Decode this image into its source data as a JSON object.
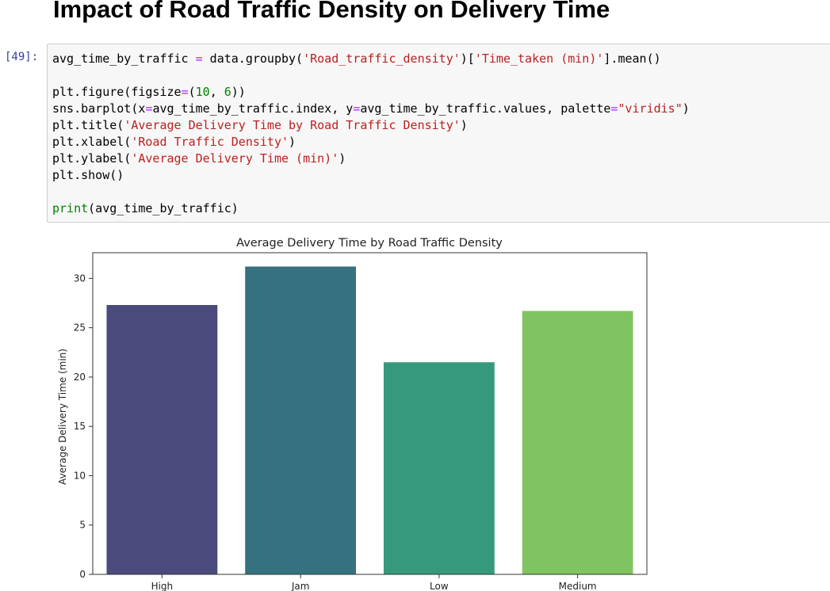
{
  "heading": "Impact of Road Traffic Density on Delivery Time",
  "cell": {
    "prompt": "[49]:",
    "code": {
      "l1_a": "avg_time_by_traffic ",
      "l1_op": "=",
      "l1_b": " data.groupby(",
      "l1_s1": "'Road_traffic_density'",
      "l1_c": ")[",
      "l1_s2": "'Time_taken (min)'",
      "l1_d": "].mean()",
      "l3_a": "plt.figure(figsize",
      "l3_op": "=",
      "l3_b": "(",
      "l3_n1": "10",
      "l3_c": ", ",
      "l3_n2": "6",
      "l3_d": "))",
      "l4_a": "sns.barplot(x",
      "l4_op1": "=",
      "l4_b": "avg_time_by_traffic.index, y",
      "l4_op2": "=",
      "l4_c": "avg_time_by_traffic.values, palette",
      "l4_op3": "=",
      "l4_s": "\"viridis\"",
      "l4_d": ")",
      "l5_a": "plt.title(",
      "l5_s": "'Average Delivery Time by Road Traffic Density'",
      "l5_b": ")",
      "l6_a": "plt.xlabel(",
      "l6_s": "'Road Traffic Density'",
      "l6_b": ")",
      "l7_a": "plt.ylabel(",
      "l7_s": "'Average Delivery Time (min)'",
      "l7_b": ")",
      "l8": "plt.show()",
      "l10_kw": "print",
      "l10_b": "(avg_time_by_traffic)"
    }
  },
  "chart_data": {
    "type": "bar",
    "title": "Average Delivery Time by Road Traffic Density",
    "xlabel": "",
    "ylabel": "Average Delivery Time (min)",
    "categories": [
      "High",
      "Jam",
      "Low",
      "Medium"
    ],
    "values": [
      27.3,
      31.2,
      21.5,
      26.7
    ],
    "colors": [
      "#4a4a7c",
      "#367180",
      "#36997c",
      "#80c361"
    ],
    "ylim": [
      0,
      32.6
    ],
    "yticks": [
      0,
      5,
      10,
      15,
      20,
      25,
      30
    ],
    "grid": false
  }
}
